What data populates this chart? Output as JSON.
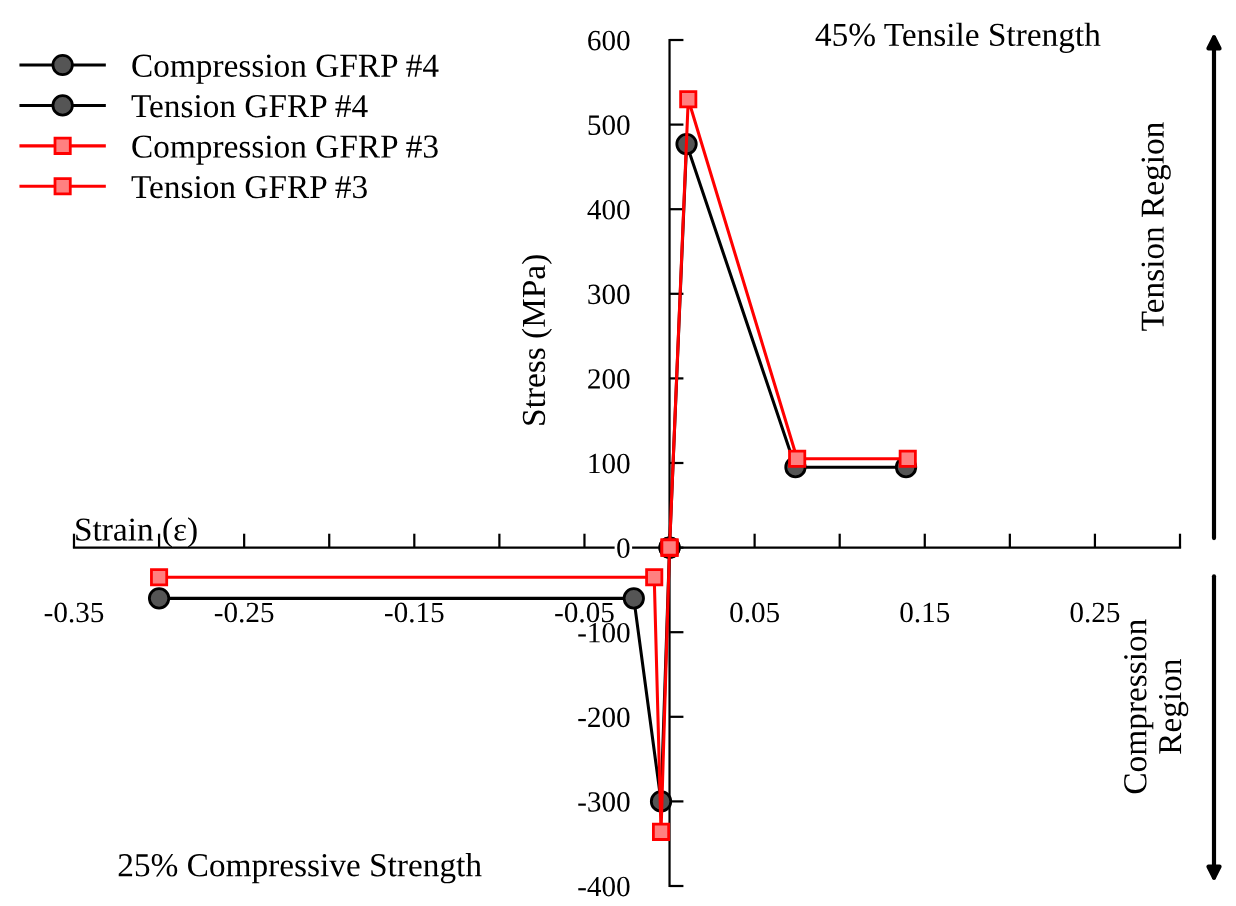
{
  "chart_data": {
    "type": "line",
    "xlabel": "Strain (ε)",
    "ylabel": "Stress (MPa)",
    "series": [
      {
        "name": "Compression GFRP #4",
        "color": "#000000",
        "marker": "circle",
        "x": [
          -0.3,
          -0.021,
          -0.005,
          0
        ],
        "values": [
          -60,
          -60,
          -300,
          0
        ]
      },
      {
        "name": "Tension GFRP #4",
        "color": "#000000",
        "marker": "circle",
        "x": [
          0,
          0.01,
          0.074,
          0.139
        ],
        "values": [
          0,
          477,
          95,
          95
        ]
      },
      {
        "name": "Compression GFRP #3",
        "color": "#ff0000",
        "marker": "square",
        "x": [
          -0.3,
          -0.009,
          -0.005,
          0
        ],
        "values": [
          -35,
          -35,
          -336,
          0
        ]
      },
      {
        "name": "Tension GFRP #3",
        "color": "#ff0000",
        "marker": "square",
        "x": [
          0,
          0.011,
          0.075,
          0.14
        ],
        "values": [
          0,
          530,
          105,
          105
        ]
      }
    ],
    "xlim": [
      -0.35,
      0.3
    ],
    "xticks": [
      -0.35,
      {
        "value": -0.3,
        "label": null
      },
      -0.25,
      {
        "value": -0.2,
        "label": null
      },
      -0.15,
      {
        "value": -0.1,
        "label": null
      },
      -0.05,
      {
        "value": 0,
        "label": null
      },
      0.05,
      {
        "value": 0.1,
        "label": null
      },
      0.15,
      {
        "value": 0.2,
        "label": null
      },
      0.25,
      {
        "value": 0.3,
        "label": null
      }
    ],
    "ylim": [
      -400,
      600
    ],
    "yticks": [
      -400,
      -300,
      -200,
      -100,
      0,
      100,
      200,
      300,
      400,
      500,
      600
    ],
    "grid": false,
    "legend": "top left",
    "annotations": [
      "45% Tensile Strength",
      "25% Compressive Strength",
      "Tension Region",
      "Compression Region"
    ]
  }
}
